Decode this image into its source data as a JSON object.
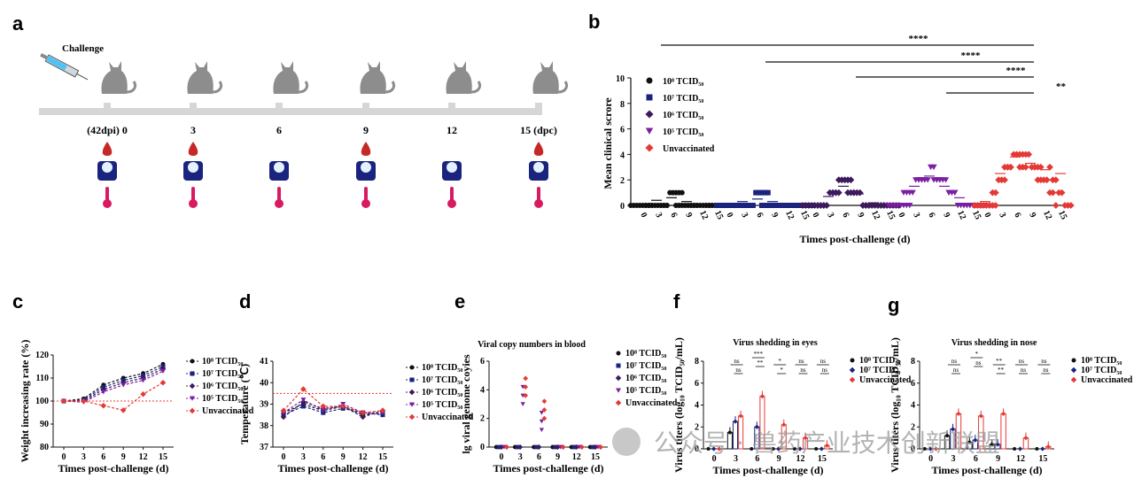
{
  "panels": {
    "a": {
      "letter": "a",
      "challenge": "Challenge",
      "timeline": [
        "(42dpi) 0",
        "3",
        "6",
        "9",
        "12",
        "15 (dpc)"
      ],
      "icons": [
        "blood-drop-icon",
        "scale-icon",
        "thermometer-icon"
      ]
    },
    "b": {
      "letter": "b",
      "ylabel": "Mean clinical scrore",
      "xlabel": "Times post-challenge (d)",
      "yticks": [
        "0",
        "2",
        "4",
        "6",
        "8",
        "10"
      ],
      "xgroup_ticks": [
        "0",
        "3",
        "6",
        "9",
        "12",
        "15"
      ],
      "sig": [
        "****",
        "****",
        "****",
        "**"
      ],
      "legend": [
        "10⁸ TCID₅₀",
        "10⁷ TCID₅₀",
        "10⁶ TCID₅₀",
        "10⁵ TCID₅₀",
        "Unvaccinated"
      ]
    },
    "c": {
      "letter": "c",
      "ylabel": "Weight increasing rate (%)",
      "xlabel": "Times post-challenge (d)",
      "yticks": [
        "80",
        "90",
        "100",
        "110",
        "120"
      ],
      "xticks": [
        "0",
        "3",
        "6",
        "9",
        "12",
        "15"
      ],
      "legend": [
        "10⁸ TCID₅₀",
        "10⁷ TCID₅₀",
        "10⁶ TCID₅₀",
        "10⁵ TCID₅₀",
        "Unvaccinated"
      ]
    },
    "d": {
      "letter": "d",
      "ylabel": "Temperature (℃)",
      "xlabel": "Times post-challenge (d)",
      "yticks": [
        "37",
        "38",
        "39",
        "40",
        "41"
      ],
      "xticks": [
        "0",
        "3",
        "6",
        "9",
        "12",
        "15"
      ],
      "legend": [
        "10⁸ TCID₅₀",
        "10⁷ TCID₅₀",
        "10⁶ TCID₅₀",
        "10⁵ TCID₅₀",
        "Unvaccinated"
      ]
    },
    "e": {
      "letter": "e",
      "title": "Viral copy numbers in blood",
      "ylabel": "lg viral genome coyies",
      "xlabel": "Times post-challenge (d)",
      "yticks": [
        "0",
        "2",
        "4",
        "6"
      ],
      "xticks": [
        "0",
        "3",
        "6",
        "9",
        "12",
        "15"
      ],
      "legend": [
        "10⁸ TCID₅₀",
        "10⁷ TCID₅₀",
        "10⁶ TCID₅₀",
        "10⁵ TCID₅₀",
        "Unvaccinated"
      ]
    },
    "f": {
      "letter": "f",
      "title": "Virus shedding in eyes",
      "ylabel": "Virus titers (log₁₀ TCID₅₀/mL)",
      "xlabel": "Times post-challenge (d)",
      "yticks": [
        "0",
        "2",
        "4",
        "6",
        "8"
      ],
      "xticks": [
        "0",
        "3",
        "6",
        "9",
        "12",
        "15"
      ],
      "legend": [
        "10⁸ TCID₅₀",
        "10⁷ TCID₅₀",
        "Unvaccinated"
      ],
      "sig": [
        "ns",
        "ns",
        "***",
        "**",
        "*",
        "*",
        "ns",
        "ns",
        "ns",
        "ns"
      ]
    },
    "g": {
      "letter": "g",
      "title": "Virus shedding in nose",
      "ylabel": "Virus titers (log₁₀ TCID₅₀/mL)",
      "xlabel": "Times post-challenge (d)",
      "yticks": [
        "0",
        "2",
        "4",
        "6",
        "8"
      ],
      "xticks": [
        "0",
        "3",
        "6",
        "9",
        "12",
        "15"
      ],
      "legend": [
        "10⁸ TCID₅₀",
        "10⁷ TCID₅₀",
        "Unvaccinated"
      ],
      "sig": [
        "ns",
        "ns",
        "*",
        "ns",
        "**",
        "**",
        "ns",
        "ns",
        "ns",
        "ns"
      ]
    }
  },
  "watermark": "公众号 · 兽药产业技术创新联盟",
  "colors": {
    "g8": "#111111",
    "g7": "#1a237e",
    "g6": "#3d1a5c",
    "g5": "#7b1fa2",
    "unvac": "#e53935"
  },
  "chart_data": [
    {
      "type": "scatter",
      "panel": "b",
      "days": [
        0,
        3,
        6,
        9,
        12,
        15
      ],
      "series": [
        {
          "name": "10⁸ TCID₅₀",
          "values": [
            0,
            0.4,
            0.6,
            0.3,
            0.1,
            0
          ]
        },
        {
          "name": "10⁷ TCID₅₀",
          "values": [
            0,
            0.3,
            0.5,
            0.3,
            0.1,
            0
          ]
        },
        {
          "name": "10⁶ TCID₅₀",
          "values": [
            0,
            0.7,
            1.5,
            0.9,
            0.2,
            0
          ]
        },
        {
          "name": "10⁵ TCID₅₀",
          "values": [
            0,
            1.5,
            2.3,
            1.5,
            0.6,
            0
          ]
        },
        {
          "name": "Unvaccinated",
          "values": [
            0.3,
            2.5,
            3.8,
            3.3,
            2.8,
            2.5
          ]
        }
      ],
      "ylim": [
        0,
        10
      ]
    },
    {
      "type": "line",
      "panel": "c",
      "x": [
        0,
        3,
        6,
        9,
        12,
        15
      ],
      "series": [
        {
          "name": "10⁸ TCID₅₀",
          "values": [
            100,
            101,
            107,
            110,
            112,
            116
          ]
        },
        {
          "name": "10⁷ TCID₅₀",
          "values": [
            100,
            100.5,
            106,
            109,
            111,
            115
          ]
        },
        {
          "name": "10⁶ TCID₅₀",
          "values": [
            100,
            100,
            105,
            108,
            110,
            114
          ]
        },
        {
          "name": "10⁵ TCID₅₀",
          "values": [
            100,
            99.5,
            104,
            107,
            109,
            113
          ]
        },
        {
          "name": "Unvaccinated",
          "values": [
            100,
            100,
            98,
            96,
            103,
            108
          ]
        }
      ],
      "ylim": [
        80,
        120
      ]
    },
    {
      "type": "line",
      "panel": "d",
      "x": [
        0,
        3,
        6,
        9,
        12,
        15
      ],
      "series": [
        {
          "name": "10⁸ TCID₅₀",
          "values": [
            38.6,
            39.0,
            38.7,
            38.9,
            38.5,
            38.6
          ]
        },
        {
          "name": "10⁷ TCID₅₀",
          "values": [
            38.5,
            38.9,
            38.6,
            38.8,
            38.6,
            38.5
          ]
        },
        {
          "name": "10⁶ TCID₅₀",
          "values": [
            38.4,
            39.1,
            38.8,
            38.9,
            38.4,
            38.7
          ]
        },
        {
          "name": "10⁵ TCID₅₀",
          "values": [
            38.6,
            39.2,
            38.7,
            39.0,
            38.6,
            38.6
          ]
        },
        {
          "name": "Unvaccinated",
          "values": [
            38.7,
            39.7,
            38.9,
            38.9,
            38.6,
            38.7
          ]
        }
      ],
      "ylim": [
        37,
        41
      ],
      "reference_line": 39.5
    },
    {
      "type": "scatter",
      "panel": "e",
      "x": [
        0,
        3,
        6,
        9,
        12,
        15
      ],
      "series": [
        {
          "name": "10⁸ TCID₅₀",
          "values": [
            0,
            0,
            0,
            0,
            0,
            0
          ]
        },
        {
          "name": "10⁷ TCID₅₀",
          "values": [
            0,
            0,
            0,
            0,
            0,
            0
          ]
        },
        {
          "name": "10⁶ TCID₅₀",
          "values": [
            0,
            0,
            0,
            0,
            0,
            0
          ]
        },
        {
          "name": "10⁵ TCID₅₀",
          "values": [
            0,
            3.6,
            1.8,
            0,
            0,
            0
          ]
        },
        {
          "name": "Unvaccinated",
          "values": [
            0,
            4.2,
            2.6,
            0,
            0,
            0
          ]
        }
      ],
      "ylim": [
        0,
        6
      ]
    },
    {
      "type": "bar",
      "panel": "f",
      "categories": [
        "0",
        "3",
        "6",
        "9",
        "12",
        "15"
      ],
      "series": [
        {
          "name": "10⁸ TCID₅₀",
          "values": [
            0,
            1.5,
            0,
            0,
            0,
            0
          ]
        },
        {
          "name": "10⁷ TCID₅₀",
          "values": [
            0,
            2.5,
            2.0,
            0,
            0,
            0
          ]
        },
        {
          "name": "Unvaccinated",
          "values": [
            0,
            3.0,
            4.8,
            2.2,
            1.0,
            0.3
          ]
        }
      ],
      "ylim": [
        0,
        8
      ]
    },
    {
      "type": "bar",
      "panel": "g",
      "categories": [
        "0",
        "3",
        "6",
        "9",
        "12",
        "15"
      ],
      "series": [
        {
          "name": "10⁸ TCID₅₀",
          "values": [
            0,
            1.2,
            0.6,
            0.4,
            0,
            0
          ]
        },
        {
          "name": "10⁷ TCID₅₀",
          "values": [
            0,
            1.8,
            0.8,
            0.4,
            0,
            0
          ]
        },
        {
          "name": "Unvaccinated",
          "values": [
            0,
            3.2,
            3.0,
            3.2,
            1.0,
            0.2
          ]
        }
      ],
      "ylim": [
        0,
        8
      ]
    }
  ]
}
